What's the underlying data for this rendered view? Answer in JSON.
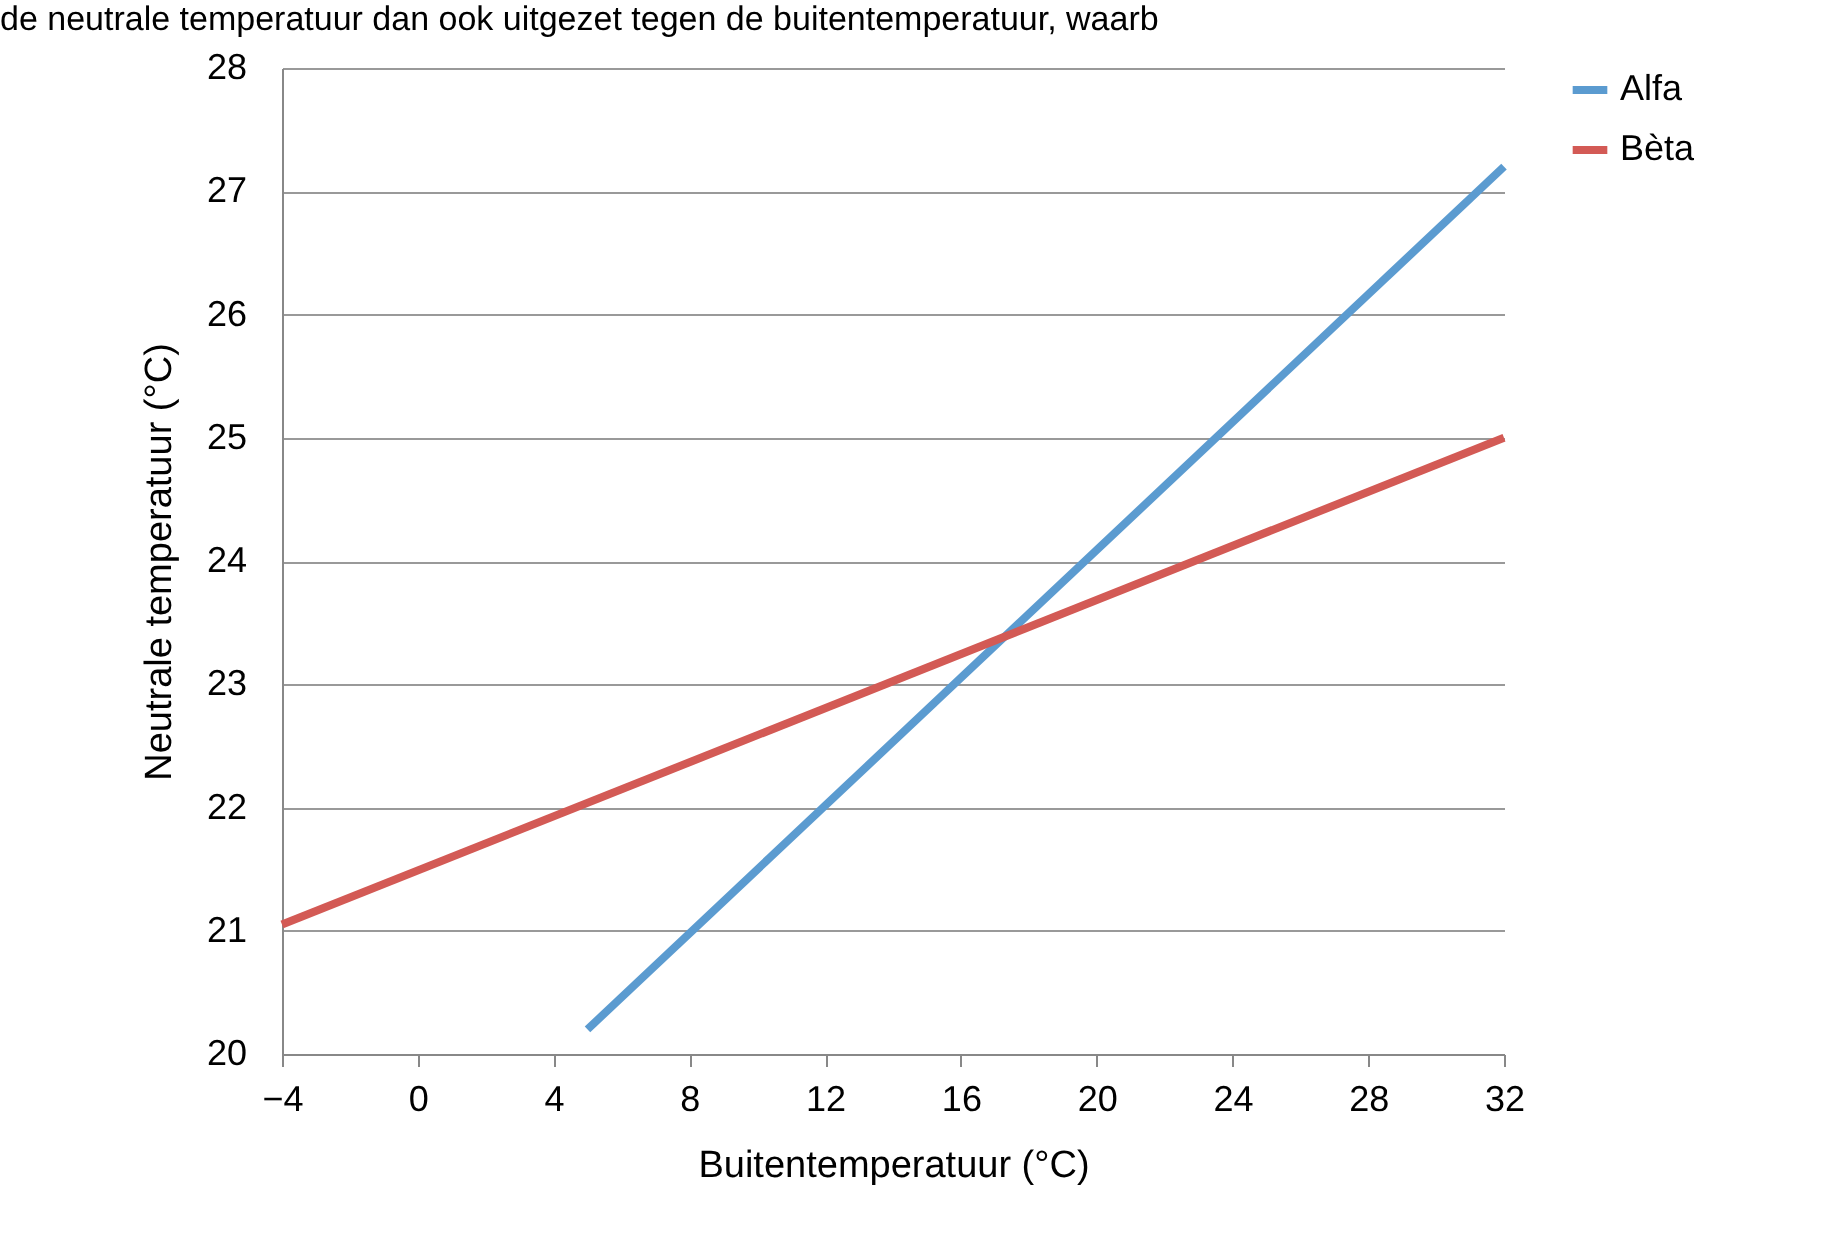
{
  "chart_data": {
    "type": "line",
    "annotations": [
      "de neutrale temperatuur dan ook uitgezet tegen de buitentemperatuur, waarb"
    ],
    "xlabel": "Buitentemperatuur (°C)",
    "ylabel": "Neutrale temperatuur (°C)",
    "xlim": [
      -4,
      32
    ],
    "xticks": [
      -4,
      0,
      4,
      8,
      12,
      16,
      20,
      24,
      28,
      32
    ],
    "ylim": [
      20,
      28
    ],
    "yticks": [
      20,
      21,
      22,
      23,
      24,
      25,
      26,
      27,
      28
    ],
    "grid": "y",
    "legend": "right",
    "line_style": "solid",
    "series": [
      {
        "name": "Alfa",
        "color": "#5b9bd0",
        "x": [
          5,
          32
        ],
        "values": [
          20.2,
          27.2
        ]
      },
      {
        "name": "Bèta",
        "color": "#d35a55",
        "x": [
          -4,
          32
        ],
        "values": [
          21.05,
          25.0
        ]
      }
    ]
  }
}
